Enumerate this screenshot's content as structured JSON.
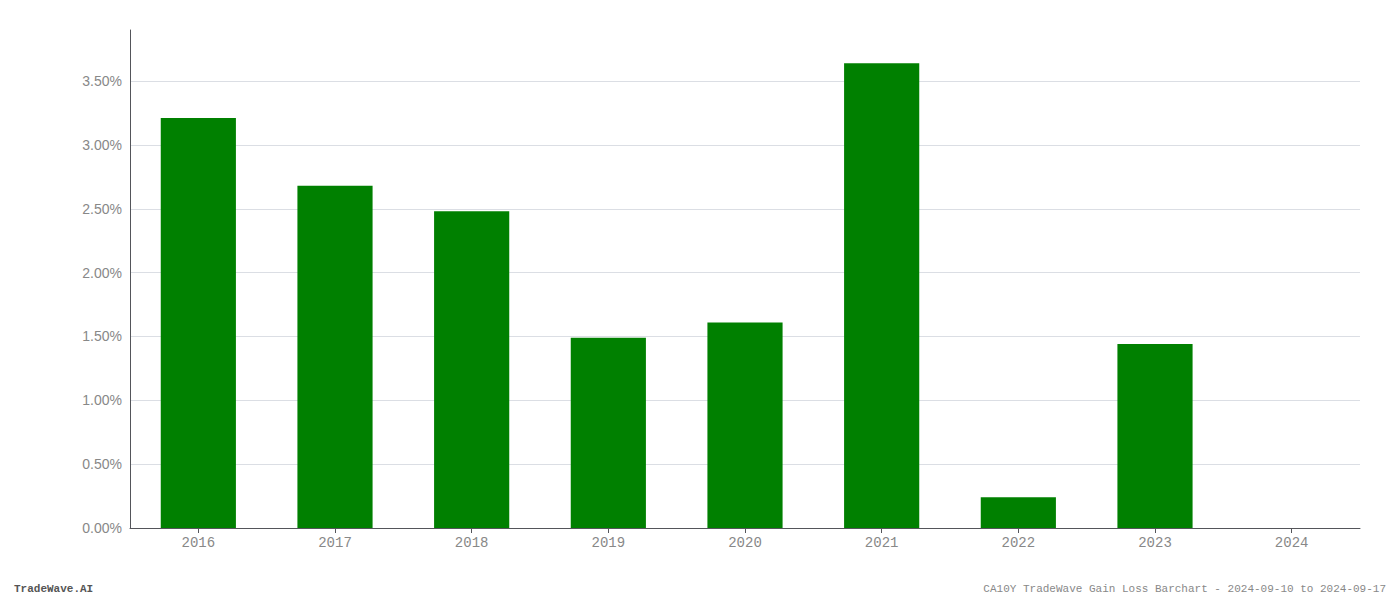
{
  "chart_data": {
    "type": "bar",
    "categories": [
      "2016",
      "2017",
      "2018",
      "2019",
      "2020",
      "2021",
      "2022",
      "2023",
      "2024"
    ],
    "values": [
      0.0321,
      0.0268,
      0.0248,
      0.0149,
      0.0161,
      0.0364,
      0.0024,
      0.0144,
      0.0
    ],
    "color": "#008000",
    "ylim": [
      0,
      0.039
    ],
    "yticks": [
      {
        "value": 0.0,
        "label": "0.00%"
      },
      {
        "value": 0.005,
        "label": "0.50%"
      },
      {
        "value": 0.01,
        "label": "1.00%"
      },
      {
        "value": 0.015,
        "label": "1.50%"
      },
      {
        "value": 0.02,
        "label": "2.00%"
      },
      {
        "value": 0.025,
        "label": "2.50%"
      },
      {
        "value": 0.03,
        "label": "3.00%"
      },
      {
        "value": 0.035,
        "label": "3.50%"
      }
    ],
    "grid": true,
    "annotations": [
      "TradeWave.AI",
      "CA10Y TradeWave Gain Loss Barchart - 2024-09-10 to 2024-09-17"
    ]
  }
}
